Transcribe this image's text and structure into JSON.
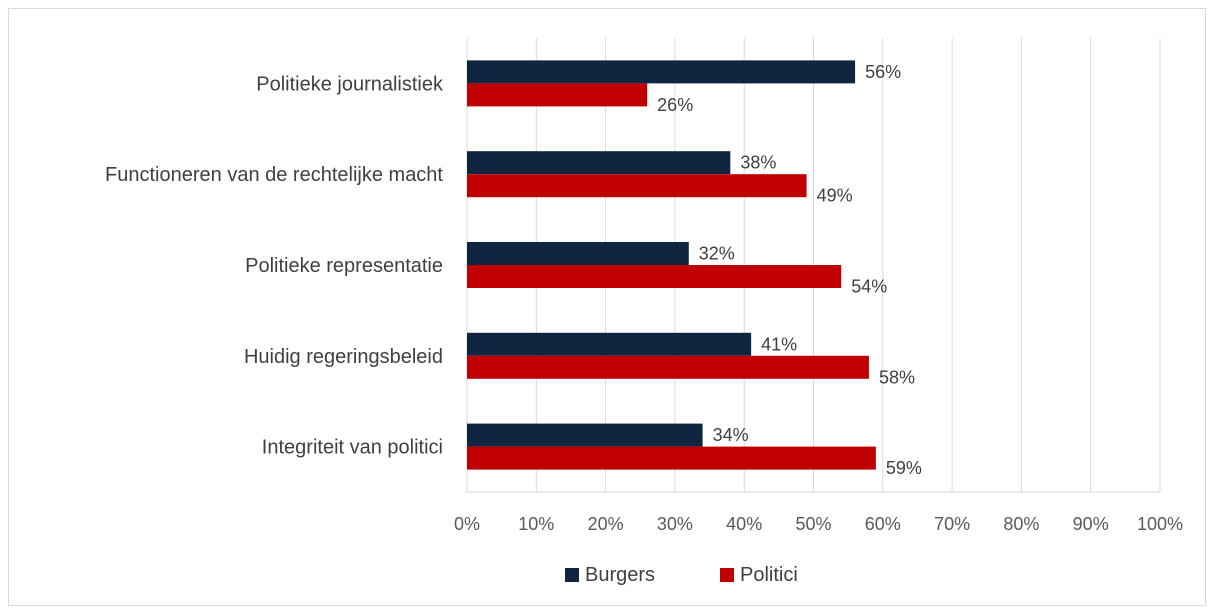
{
  "chart_data": {
    "type": "bar",
    "orientation": "horizontal",
    "categories": [
      "Politieke journalistiek",
      "Functioneren van de rechtelijke macht",
      "Politieke representatie",
      "Huidig regeringsbeleid",
      "Integriteit van politici"
    ],
    "series": [
      {
        "name": "Burgers",
        "color": "#10253f",
        "values": [
          56,
          38,
          32,
          41,
          34
        ],
        "labels": [
          "56%",
          "38%",
          "32%",
          "41%",
          "34%"
        ]
      },
      {
        "name": "Politici",
        "color": "#c00000",
        "values": [
          26,
          49,
          54,
          58,
          59
        ],
        "labels": [
          "26%",
          "49%",
          "54%",
          "58%",
          "59%"
        ]
      }
    ],
    "xlim": [
      0,
      100
    ],
    "x_ticks": [
      "0%",
      "10%",
      "20%",
      "30%",
      "40%",
      "50%",
      "60%",
      "70%",
      "80%",
      "90%",
      "100%"
    ],
    "grid": "vertical",
    "legend_position": "bottom",
    "gridline_color": "#d9d9d9"
  }
}
